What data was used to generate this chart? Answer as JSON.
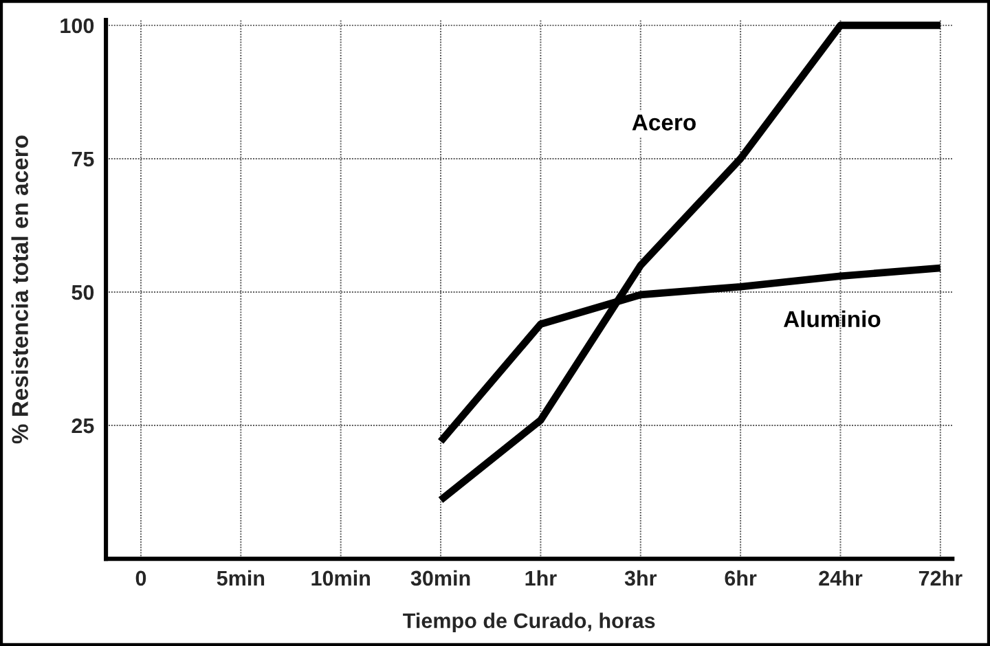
{
  "chart_data": {
    "type": "line",
    "xlabel": "Tiempo de Curado, horas",
    "ylabel": "% Resistencia total en acero",
    "categories": [
      "0",
      "5min",
      "10min",
      "30min",
      "1hr",
      "3hr",
      "6hr",
      "24hr",
      "72hr"
    ],
    "ylim": [
      0,
      101
    ],
    "yticks": [
      25,
      50,
      75,
      100
    ],
    "grid": true,
    "line_style": "solid",
    "marker": "none",
    "series": [
      {
        "name": "Acero",
        "color": "#000000",
        "values": [
          null,
          null,
          null,
          11,
          26,
          55,
          75,
          100,
          100
        ]
      },
      {
        "name": "Aluminio",
        "color": "#000000",
        "values": [
          null,
          null,
          null,
          22,
          44,
          49.5,
          51,
          53,
          54.5
        ]
      }
    ]
  }
}
